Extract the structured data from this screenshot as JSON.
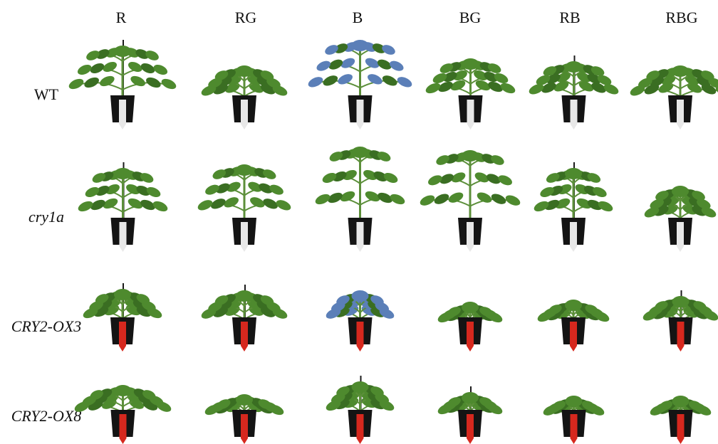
{
  "columns": [
    "R",
    "RG",
    "B",
    "BG",
    "RB",
    "RBG"
  ],
  "rows": [
    {
      "label": "WT",
      "italic": false
    },
    {
      "label": "cry1a",
      "italic": true
    },
    {
      "label": "CRY2-OX3",
      "italic": true
    },
    {
      "label": "CRY2-OX8",
      "italic": true
    }
  ],
  "colors": {
    "leaf": "#4e8a2e",
    "leaf_dark": "#3a6e22",
    "leaf_blue_tint": "#5b7fb8",
    "stem": "#5c8f3a",
    "pot": "#141414",
    "label_white": "#e8e8e8",
    "label_red": "#d6281e",
    "stake": "#1a1a1a"
  }
}
